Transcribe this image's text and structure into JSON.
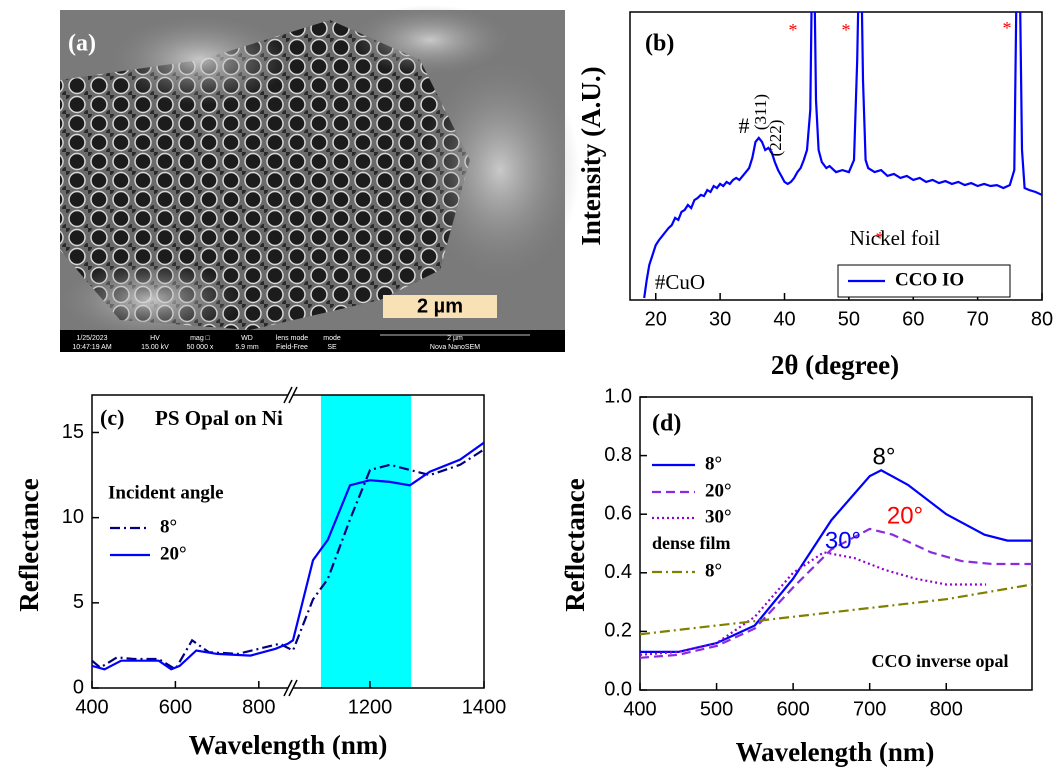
{
  "image_panel": {
    "label": "(a)",
    "scale_bar": "2 µm",
    "info_bar": [
      {
        "top": "1/25/2023",
        "bottom": "10:47:19 AM"
      },
      {
        "top": "HV",
        "bottom": "15.00 kV"
      },
      {
        "top": "mag □",
        "bottom": "50 000 x"
      },
      {
        "top": "WD",
        "bottom": "5.9 mm"
      },
      {
        "top": "lens mode",
        "bottom": "Field-Free"
      },
      {
        "top": "mode",
        "bottom": "SE"
      },
      {
        "top": "2 µm",
        "bottom": "Nova NanoSEM"
      }
    ]
  },
  "chart_data": [
    {
      "type": "line",
      "xlabel": "2θ (degree)",
      "ylabel": "Intensity (A.U.)",
      "xlim": [
        16,
        80
      ],
      "ylim": [
        0,
        100
      ],
      "xticks": [
        20,
        30,
        40,
        50,
        60,
        70,
        80
      ],
      "series": [
        {
          "name": "CCO IO",
          "color": "#0000ff",
          "dash": "solid",
          "x": [
            18.2,
            18.6,
            19,
            19.5,
            20,
            20.5,
            21,
            21.5,
            22,
            22.5,
            23,
            23.5,
            24,
            24.5,
            25,
            25.5,
            26,
            26.5,
            27,
            27.5,
            28,
            28.5,
            29,
            29.5,
            30,
            30.5,
            31,
            31.5,
            32,
            32.5,
            33,
            33.5,
            34,
            34.5,
            35,
            35.5,
            36,
            36.5,
            37,
            37.5,
            38,
            38.5,
            39,
            39.5,
            40,
            40.5,
            41,
            41.5,
            42,
            42.5,
            43,
            43.5,
            44,
            44.3,
            44.6,
            44.9,
            45.3,
            45.8,
            46.5,
            47,
            48,
            49,
            50,
            50.8,
            51.3,
            51.6,
            51.9,
            52.2,
            52.6,
            53,
            54,
            55,
            56,
            57,
            58,
            59,
            60,
            61,
            62,
            63,
            64,
            65,
            66,
            67,
            68,
            69,
            70,
            71,
            72,
            73,
            74,
            75,
            75.7,
            76.1,
            76.5,
            76.9,
            77.3,
            78,
            79,
            80
          ],
          "values": [
            0.7,
            6.9,
            12.2,
            15.6,
            19.1,
            20.8,
            22.2,
            23.6,
            25,
            26,
            28.5,
            27.8,
            30.6,
            31.3,
            33,
            31.9,
            34.7,
            35.4,
            36.5,
            36.1,
            38.2,
            37.5,
            39.6,
            38.9,
            40.3,
            39.6,
            41,
            40.3,
            41.7,
            42.4,
            41.7,
            43.1,
            44.4,
            45.8,
            49.3,
            54.9,
            56.3,
            54.9,
            52.1,
            52.8,
            51.4,
            47.9,
            45.1,
            43.1,
            41,
            40.3,
            41,
            42.4,
            44.4,
            45.8,
            48.6,
            52.1,
            66,
            120,
            120,
            69.4,
            52.1,
            47.9,
            45.8,
            46.5,
            44.4,
            45.1,
            44.4,
            48.6,
            83.3,
            120,
            120,
            76.4,
            48.6,
            45.8,
            44.4,
            45.1,
            43.1,
            43.8,
            42.4,
            43.1,
            41.7,
            42.4,
            41,
            41.7,
            40.6,
            41.3,
            40.3,
            41,
            39.9,
            40.6,
            39.6,
            40.3,
            39.6,
            39.9,
            38.9,
            39.9,
            45.1,
            120,
            120,
            52.1,
            38.9,
            38.2,
            37.5,
            36.5
          ]
        }
      ],
      "annotations": [
        {
          "text": "(b)"
        },
        {
          "text": "*",
          "color": "#ff0000"
        },
        {
          "text": "*",
          "color": "#ff0000"
        },
        {
          "text": "*",
          "color": "#ff0000"
        },
        {
          "text": "#"
        },
        {
          "text": "(311)"
        },
        {
          "text": "(222)"
        },
        {
          "text": "*",
          "color": "#ff0000"
        },
        {
          "text": "Nickel foil"
        },
        {
          "text": "#CuO"
        }
      ],
      "legend": true
    },
    {
      "type": "line",
      "xlabel": "Wavelength (nm)",
      "ylabel": "Reflectance",
      "xlim": [
        400,
        1400
      ],
      "xbreak": [
        870,
        1065
      ],
      "ylim": [
        0,
        17.2
      ],
      "xticks": [
        400,
        600,
        800,
        1200,
        1400
      ],
      "yticks": [
        0,
        5,
        10,
        15
      ],
      "highlight": {
        "range": [
          1114,
          1272
        ],
        "color": "#00ffff"
      },
      "legend_title": "Incident angle",
      "legend": true,
      "series": [
        {
          "name": "8°",
          "color": "#000080",
          "dash": "dashdot",
          "x": [
            400,
            420,
            460,
            500,
            560,
            600,
            640,
            680,
            750,
            850,
            1065,
            1100,
            1126,
            1165,
            1200,
            1235,
            1270,
            1305,
            1358,
            1400
          ],
          "values": [
            1.6,
            1.2,
            1.8,
            1.7,
            1.7,
            1.1,
            2.8,
            2.1,
            2.0,
            2.6,
            2.2,
            5.2,
            6.4,
            9.9,
            12.8,
            13.1,
            12.8,
            12.5,
            13.1,
            14.0
          ]
        },
        {
          "name": "20°",
          "color": "#0000ff",
          "dash": "solid",
          "x": [
            400,
            430,
            470,
            520,
            560,
            590,
            610,
            650,
            700,
            780,
            840,
            870,
            1065,
            1100,
            1126,
            1165,
            1200,
            1235,
            1270,
            1305,
            1358,
            1400
          ],
          "values": [
            1.3,
            1.1,
            1.6,
            1.6,
            1.6,
            1.1,
            1.3,
            2.2,
            2.0,
            1.9,
            2.3,
            2.6,
            2.8,
            7.5,
            8.7,
            11.9,
            12.2,
            12.1,
            11.9,
            12.7,
            13.4,
            14.4
          ]
        }
      ],
      "annotations": [
        {
          "text": "(c)"
        },
        {
          "text": "PS Opal on Ni"
        }
      ]
    },
    {
      "type": "line",
      "xlabel": "Wavelength (nm)",
      "ylabel": "Reflectance",
      "xlim": [
        400,
        912
      ],
      "ylim": [
        0,
        1
      ],
      "xticks": [
        400,
        500,
        600,
        700,
        800
      ],
      "yticks": [
        {
          "value": 0,
          "label": "0.0"
        },
        0.2,
        0.4,
        0.6,
        0.8,
        {
          "value": 1,
          "label": "1.0"
        }
      ],
      "legend": true,
      "series": [
        {
          "name": "8°",
          "color": "#0000ff",
          "dash": "solid",
          "x": [
            400,
            450,
            500,
            550,
            600,
            650,
            700,
            715,
            750,
            800,
            850,
            880,
            912
          ],
          "values": [
            0.13,
            0.13,
            0.16,
            0.22,
            0.38,
            0.58,
            0.73,
            0.75,
            0.7,
            0.6,
            0.53,
            0.51,
            0.51
          ]
        },
        {
          "name": "20°",
          "color": "#8a2be2",
          "dash": "dash",
          "x": [
            400,
            450,
            500,
            550,
            600,
            650,
            700,
            730,
            780,
            820,
            860,
            912
          ],
          "values": [
            0.11,
            0.12,
            0.15,
            0.21,
            0.35,
            0.48,
            0.55,
            0.53,
            0.47,
            0.44,
            0.43,
            0.43
          ]
        },
        {
          "name": "30°",
          "color": "#9400d3",
          "dash": "dot",
          "x": [
            400,
            450,
            500,
            550,
            600,
            640,
            680,
            720,
            760,
            800,
            852
          ],
          "values": [
            0.12,
            0.13,
            0.16,
            0.25,
            0.4,
            0.47,
            0.45,
            0.41,
            0.38,
            0.36,
            0.36
          ]
        },
        {
          "name": "8°",
          "color": "#808000",
          "dash": "dashdot",
          "x": [
            400,
            500,
            600,
            700,
            800,
            912
          ],
          "values": [
            0.19,
            0.22,
            0.25,
            0.28,
            0.31,
            0.36
          ]
        }
      ],
      "annotations": [
        {
          "text": "(d)"
        },
        {
          "text": "8°"
        },
        {
          "text": "20°",
          "color": "#ff0000"
        },
        {
          "text": "30°",
          "color": "#0000ff"
        },
        {
          "text": "dense film"
        },
        {
          "text": "CCO inverse opal"
        }
      ]
    }
  ]
}
